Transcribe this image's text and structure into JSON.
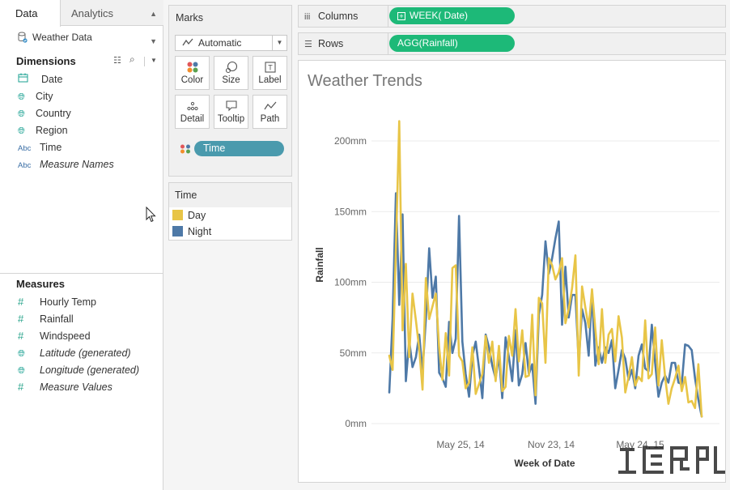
{
  "tabs": {
    "data": "Data",
    "analytics": "Analytics"
  },
  "datasource": "Weather Data",
  "dimensions": {
    "title": "Dimensions",
    "items": [
      {
        "icon": "date-icon",
        "label": "Date",
        "italic": false
      },
      {
        "icon": "globe-icon",
        "label": "City",
        "italic": false
      },
      {
        "icon": "globe-icon",
        "label": "Country",
        "italic": false
      },
      {
        "icon": "globe-icon",
        "label": "Region",
        "italic": false
      },
      {
        "icon": "abc-icon",
        "label": "Time",
        "italic": false
      },
      {
        "icon": "abc-icon",
        "label": "Measure Names",
        "italic": true
      }
    ]
  },
  "measures": {
    "title": "Measures",
    "items": [
      {
        "icon": "hash-icon",
        "label": "Hourly Temp",
        "italic": false
      },
      {
        "icon": "hash-icon",
        "label": "Rainfall",
        "italic": false
      },
      {
        "icon": "hash-icon",
        "label": "Windspeed",
        "italic": false
      },
      {
        "icon": "globe-icon",
        "label": "Latitude (generated)",
        "italic": true
      },
      {
        "icon": "globe-icon",
        "label": "Longitude (generated)",
        "italic": true
      },
      {
        "icon": "hash-icon",
        "label": "Measure Values",
        "italic": true
      }
    ]
  },
  "marks": {
    "title": "Marks",
    "type": "Automatic",
    "buttons": {
      "color": "Color",
      "size": "Size",
      "label": "Label",
      "detail": "Detail",
      "tooltip": "Tooltip",
      "path": "Path"
    },
    "pill": "Time"
  },
  "legend": {
    "title": "Time",
    "items": [
      {
        "label": "Day",
        "color": "#e8c547"
      },
      {
        "label": "Night",
        "color": "#4e79a7"
      }
    ]
  },
  "shelves": {
    "columns_label": "Columns",
    "columns_pill": "WEEK( Date)",
    "rows_label": "Rows",
    "rows_pill": "AGG(Rainfall)"
  },
  "colors": {
    "pill_green": "#1db978",
    "pill_teal": "#4a9aad",
    "day": "#e8c547",
    "night": "#4e79a7"
  },
  "chart_data": {
    "type": "line",
    "title": "Weather Trends",
    "xlabel": "Week of Date",
    "ylabel": "Rainfall",
    "y_ticks": [
      "0mm",
      "50mm",
      "100mm",
      "150mm",
      "200mm"
    ],
    "x_ticks": [
      "May 25, 14",
      "Nov 23, 14",
      "May 24, 15"
    ],
    "ylim": [
      0,
      225
    ],
    "grid": true,
    "series": [
      {
        "name": "Day",
        "color": "#e8c547",
        "values": [
          48,
          38,
          124,
          214,
          66,
          113,
          47,
          92,
          73,
          53,
          24,
          103,
          74,
          83,
          92,
          54,
          31,
          64,
          34,
          110,
          112,
          48,
          44,
          25,
          29,
          54,
          21,
          28,
          35,
          62,
          43,
          58,
          30,
          55,
          23,
          26,
          62,
          48,
          81,
          44,
          66,
          33,
          34,
          77,
          20,
          89,
          85,
          43,
          117,
          112,
          102,
          107,
          117,
          71,
          81,
          96,
          119,
          34,
          97,
          82,
          68,
          95,
          67,
          42,
          81,
          43,
          63,
          67,
          44,
          76,
          61,
          22,
          33,
          47,
          27,
          33,
          30,
          73,
          32,
          35,
          68,
          27,
          59,
          33,
          14,
          25,
          32,
          41,
          23,
          33,
          15,
          16,
          11,
          42,
          5
        ]
      },
      {
        "name": "Night",
        "color": "#4e79a7",
        "values": [
          22,
          74,
          163,
          84,
          148,
          30,
          59,
          40,
          47,
          63,
          37,
          74,
          124,
          89,
          104,
          36,
          32,
          26,
          72,
          50,
          60,
          147,
          58,
          35,
          19,
          48,
          58,
          39,
          18,
          63,
          54,
          41,
          32,
          48,
          18,
          61,
          47,
          30,
          66,
          27,
          35,
          57,
          35,
          42,
          14,
          77,
          91,
          129,
          106,
          117,
          131,
          143,
          70,
          111,
          75,
          91,
          91,
          43,
          81,
          71,
          48,
          94,
          41,
          54,
          43,
          54,
          50,
          59,
          25,
          38,
          52,
          46,
          31,
          38,
          25,
          48,
          56,
          39,
          37,
          70,
          43,
          19,
          29,
          34,
          29,
          43,
          43,
          29,
          28,
          56,
          55,
          52,
          32,
          17,
          5
        ]
      }
    ]
  }
}
